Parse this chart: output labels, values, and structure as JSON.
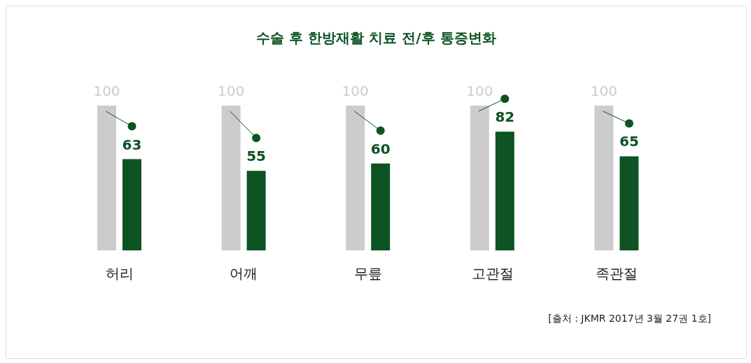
{
  "chart_data": {
    "type": "bar",
    "title": "수술 후 한방재활 치료 전/후 통증변화",
    "categories": [
      "허리",
      "어깨",
      "무릎",
      "고관절",
      "족관절"
    ],
    "series": [
      {
        "color": "#cccccc",
        "values": [
          100,
          100,
          100,
          100,
          100
        ]
      },
      {
        "color": "#0d5323",
        "values": [
          63,
          55,
          60,
          82,
          65
        ]
      }
    ],
    "data_labels": true,
    "annotations": [
      "[출처 : JKMR 2017년 3월 27권 1호]"
    ]
  }
}
